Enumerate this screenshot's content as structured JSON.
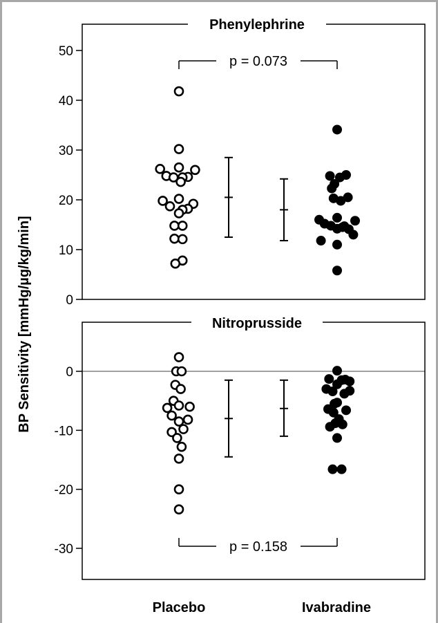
{
  "y_label": "BP Sensitivity [mmHg/µg/kg/min]",
  "categories": [
    "Placebo",
    "Ivabradine"
  ],
  "chart_data": [
    {
      "type": "scatter",
      "title": "Phenylephrine",
      "ylim": [
        0,
        50
      ],
      "yticks": [
        0,
        10,
        20,
        30,
        40,
        50
      ],
      "zero_line": false,
      "p_value": "p = 0.073",
      "series": [
        {
          "category": "Placebo",
          "marker": "open",
          "values": [
            41.8,
            30.2,
            26.5,
            26.2,
            26.0,
            24.8,
            24.6,
            24.5,
            24.5,
            23.6,
            20.2,
            19.8,
            19.2,
            18.7,
            18.2,
            18.0,
            17.3,
            14.8,
            14.8,
            12.2,
            12.1,
            7.8,
            7.2
          ],
          "offsets": [
            0,
            0,
            0,
            -2.1,
            1.8,
            -1.4,
            1.0,
            -0.6,
            0.4,
            0.2,
            0,
            -1.8,
            1.6,
            -1.0,
            1.0,
            0.4,
            0,
            -0.5,
            0.4,
            -0.5,
            0.4,
            0.4,
            -0.4
          ],
          "mean": 20.5,
          "sd_range": [
            12.5,
            28.5
          ]
        },
        {
          "category": "Ivabradine",
          "marker": "filled",
          "values": [
            34.1,
            25.0,
            24.8,
            24.5,
            23.2,
            22.3,
            20.5,
            20.3,
            19.8,
            16.4,
            16.0,
            15.8,
            15.2,
            14.8,
            14.5,
            14.2,
            14.1,
            14.7,
            13.0,
            11.8,
            11.0,
            5.8
          ],
          "offsets": [
            0,
            1.0,
            -0.8,
            0.3,
            -0.3,
            -0.6,
            1.2,
            -0.4,
            0.4,
            0,
            -2.0,
            2.0,
            -1.4,
            -0.7,
            0.6,
            0,
            1.3,
            0.8,
            1.8,
            -1.8,
            0,
            0
          ],
          "mean": 18.0,
          "sd_range": [
            11.8,
            24.2
          ]
        }
      ]
    },
    {
      "type": "scatter",
      "title": "Nitroprusside",
      "ylim": [
        -35,
        8
      ],
      "yticks": [
        -30,
        -20,
        -10,
        0
      ],
      "zero_line": true,
      "p_value": "p = 0.158",
      "series": [
        {
          "category": "Placebo",
          "marker": "open",
          "values": [
            2.4,
            0,
            0,
            -2.3,
            -3.0,
            -5.0,
            -5.8,
            -6.0,
            -6.2,
            -7.5,
            -8.2,
            -8.5,
            -9.8,
            -10.3,
            -11.3,
            -12.8,
            -14.8,
            -20.0,
            -23.4
          ],
          "offsets": [
            0,
            -0.3,
            0.3,
            -0.4,
            0.2,
            -0.6,
            0,
            1.2,
            -1.3,
            -0.8,
            1.0,
            0,
            0.5,
            -0.8,
            -0.2,
            0.3,
            0,
            0,
            0
          ],
          "mean": -8.0,
          "sd_range": [
            -14.5,
            -1.5
          ]
        },
        {
          "category": "Ivabradine",
          "marker": "filled",
          "values": [
            0.1,
            -1.3,
            -1.4,
            -1.5,
            -1.7,
            -2.2,
            -3.0,
            -3.3,
            -3.4,
            -3.8,
            -5.3,
            -5.5,
            -6.4,
            -6.6,
            -7.0,
            -8.1,
            -8.8,
            -9.0,
            -9.4,
            -11.3,
            -16.6,
            -16.6
          ],
          "offsets": [
            0,
            -0.9,
            0.9,
            0.5,
            1.4,
            0,
            -1.2,
            1.4,
            -0.5,
            0.8,
            0,
            -0.3,
            -1.0,
            1.0,
            -0.4,
            0.2,
            -0.2,
            0.6,
            -0.8,
            0,
            -0.5,
            0.5
          ],
          "mean": -6.3,
          "sd_range": [
            -11.0,
            -1.5
          ]
        }
      ]
    }
  ]
}
